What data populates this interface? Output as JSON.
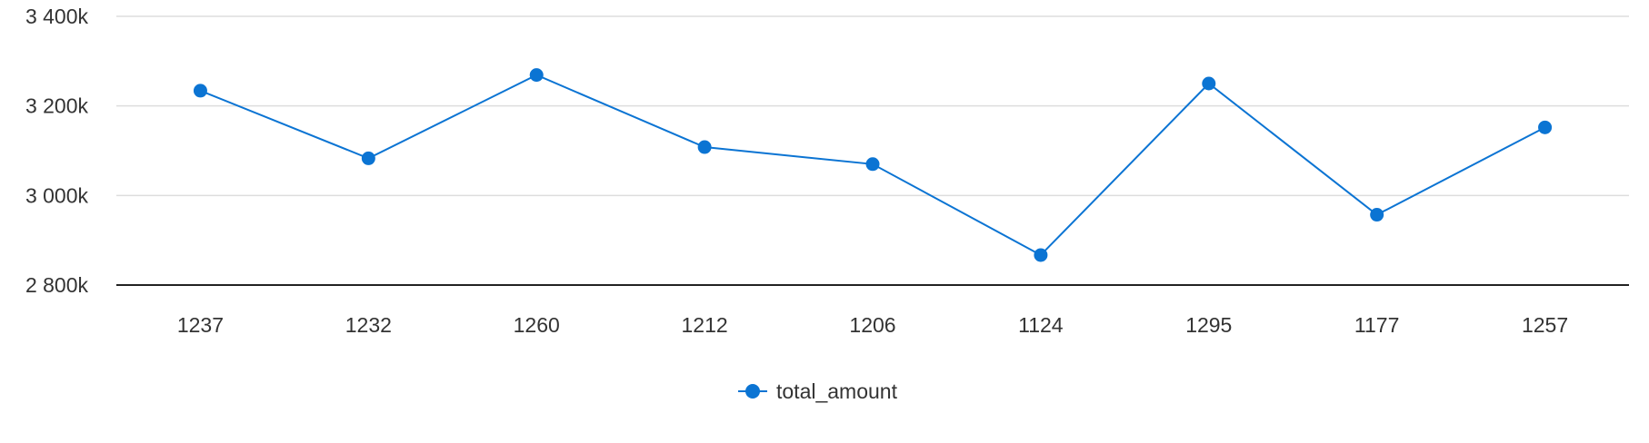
{
  "chart_data": {
    "type": "line",
    "title": "",
    "xlabel": "",
    "ylabel": "",
    "categories": [
      "1237",
      "1232",
      "1260",
      "1212",
      "1206",
      "1124",
      "1295",
      "1177",
      "1257"
    ],
    "series": [
      {
        "name": "total_amount",
        "color": "#0b74d3",
        "values": [
          3234000,
          3083000,
          3269000,
          3108000,
          3070000,
          2867000,
          3250000,
          2957000,
          3152000
        ]
      }
    ],
    "ylim": [
      2800000,
      3400000
    ],
    "yticks": [
      {
        "value": 2800000,
        "label": "2 800k"
      },
      {
        "value": 3000000,
        "label": "3 000k"
      },
      {
        "value": 3200000,
        "label": "3 200k"
      },
      {
        "value": 3400000,
        "label": "3 400k"
      }
    ],
    "grid": true,
    "legend_position": "bottom-center"
  }
}
